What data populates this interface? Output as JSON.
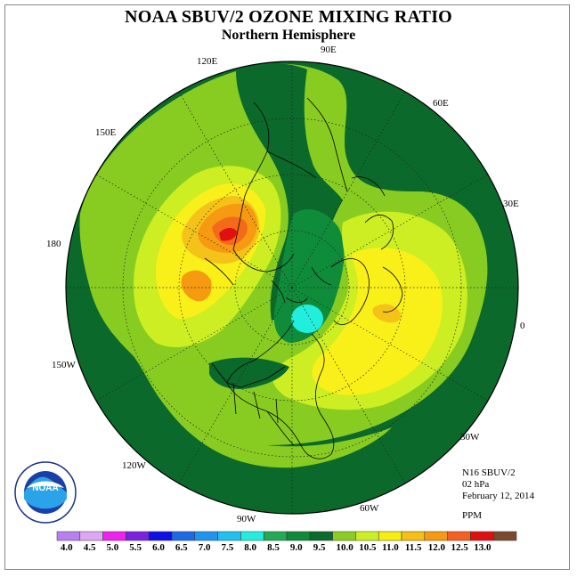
{
  "title": "NOAA SBUV/2 OZONE MIXING RATIO",
  "subtitle": "Northern Hemisphere",
  "longitudes": {
    "lon_90e": "90E",
    "lon_60e": "60E",
    "lon_120e": "120E",
    "lon_150e": "150E",
    "lon_30e": "30E",
    "lon_180": "180",
    "lon_0": "0",
    "lon_150w": "150W",
    "lon_120w": "120W",
    "lon_30w": "30W",
    "lon_90w": "90W",
    "lon_60w": "60W"
  },
  "info": {
    "instrument": "N16 SBUV/2",
    "level": "02 hPa",
    "date": "February 12, 2014",
    "units": "PPM"
  },
  "logo": {
    "text": "NOAA",
    "ring_text": "NATIONAL OCEANIC AND ATMOSPHERIC ADMINISTRATION · U.S. DEPARTMENT OF COMMERCE"
  },
  "colorbar": {
    "labels": [
      "4.0",
      "4.5",
      "5.0",
      "5.5",
      "6.0",
      "6.5",
      "7.0",
      "7.5",
      "8.0",
      "8.5",
      "9.0",
      "9.5",
      "10.0",
      "10.5",
      "11.0",
      "11.5",
      "12.0",
      "12.5",
      "13.0"
    ],
    "colors": [
      "#b77ff0",
      "#dca8f4",
      "#ee22ee",
      "#7a22e0",
      "#1010e6",
      "#1c6ae6",
      "#1e94ef",
      "#22c0f0",
      "#22eee0",
      "#22aa55",
      "#0e8a3a",
      "#0c6a2c",
      "#8ccc22",
      "#ccee22",
      "#f7ee11",
      "#f5c011",
      "#f59a11",
      "#f56022",
      "#e01010",
      "#7a4a30"
    ]
  },
  "fill_colors": {
    "dark_green": "#0b6a2b",
    "mid_green": "#0f8c3a",
    "light_green": "#88cc22",
    "yellow_green": "#ccee22",
    "yellow": "#f9f01a",
    "gold": "#f5c21a",
    "orange": "#f59a11",
    "dark_orange": "#f26a1a",
    "red": "#e01010",
    "cyan": "#22eedd"
  }
}
